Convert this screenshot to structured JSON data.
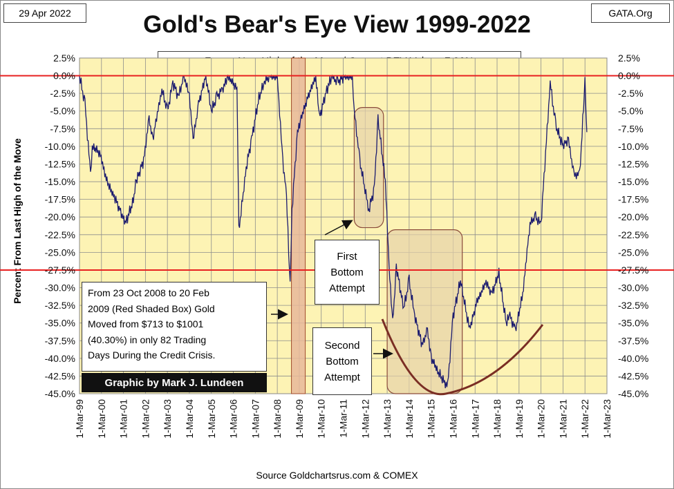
{
  "header": {
    "date": "29 Apr 2022",
    "site": "GATA.Org"
  },
  "chart_data": {
    "type": "line",
    "title": "Gold's Bear's Eye View 1999-2022",
    "subtitle": "Zero = New High of the Move / Current BEV Value:  -7.96%",
    "ylabel": "Percent  From Last High of the Move",
    "xlabel": "",
    "ylim": [
      -45,
      2.5
    ],
    "ytick_labels": [
      "2.5%",
      "0.0%",
      "-2.5%",
      "-5.0%",
      "-7.5%",
      "-10.0%",
      "-12.5%",
      "-15.0%",
      "-17.5%",
      "-20.0%",
      "-22.5%",
      "-25.0%",
      "-27.5%",
      "-30.0%",
      "-32.5%",
      "-35.0%",
      "-37.5%",
      "-40.0%",
      "-42.5%",
      "-45.0%"
    ],
    "xtick_labels": [
      "1-Mar-99",
      "1-Mar-00",
      "1-Mar-01",
      "1-Mar-02",
      "1-Mar-03",
      "1-Mar-04",
      "1-Mar-05",
      "1-Mar-06",
      "1-Mar-07",
      "1-Mar-08",
      "1-Mar-09",
      "1-Mar-10",
      "1-Mar-11",
      "1-Mar-12",
      "1-Mar-13",
      "1-Mar-14",
      "1-Mar-15",
      "1-Mar-16",
      "1-Mar-17",
      "1-Mar-18",
      "1-Mar-19",
      "1-Mar-20",
      "1-Mar-21",
      "1-Mar-22",
      "1-Mar-23"
    ],
    "grid": true,
    "reference_lines": [
      0.0,
      -27.5
    ],
    "series": [
      {
        "color": "#1a1a6e",
        "x": [
          "1999-03",
          "1999-06",
          "1999-09",
          "1999-10",
          "2000-02",
          "2000-06",
          "2000-10",
          "2001-04",
          "2001-08",
          "2001-10",
          "2002-02",
          "2002-05",
          "2002-07",
          "2002-12",
          "2003-03",
          "2003-06",
          "2003-09",
          "2003-12",
          "2004-03",
          "2004-05",
          "2004-08",
          "2004-12",
          "2005-03",
          "2005-06",
          "2005-09",
          "2005-12",
          "2006-05",
          "2006-06",
          "2006-10",
          "2007-01",
          "2007-05",
          "2007-08",
          "2007-11",
          "2008-03",
          "2008-06",
          "2008-08",
          "2008-10",
          "2008-11",
          "2009-02",
          "2009-04",
          "2009-08",
          "2009-12",
          "2010-02",
          "2010-06",
          "2010-09",
          "2010-12",
          "2011-04",
          "2011-08",
          "2011-09",
          "2011-12",
          "2012-05",
          "2012-08",
          "2012-10",
          "2013-02",
          "2013-04",
          "2013-06",
          "2013-08",
          "2013-12",
          "2014-03",
          "2014-06",
          "2014-10",
          "2015-01",
          "2015-03",
          "2015-07",
          "2015-12",
          "2016-03",
          "2016-07",
          "2016-12",
          "2017-04",
          "2017-09",
          "2017-12",
          "2018-04",
          "2018-08",
          "2018-10",
          "2019-01",
          "2019-05",
          "2019-09",
          "2019-12",
          "2020-03",
          "2020-08",
          "2020-11",
          "2021-03",
          "2021-06",
          "2021-09",
          "2021-12",
          "2022-01",
          "2022-03",
          "2022-04"
        ],
        "values": [
          0,
          -4,
          -14,
          -10,
          -11,
          -15,
          -17,
          -21,
          -18,
          -15,
          -12,
          -6,
          -9,
          -2,
          -5,
          -1,
          -3,
          0,
          -3,
          -9,
          -4,
          0,
          -5,
          -3,
          -2,
          0,
          -2,
          -22,
          -13,
          -9,
          -3,
          -1,
          0,
          0,
          -12,
          -17,
          -30,
          -19,
          -8,
          -6,
          -3,
          0,
          -6,
          -2,
          0,
          -1,
          0,
          0,
          -5,
          -12,
          -19,
          -16,
          -6,
          -15,
          -27,
          -35,
          -27,
          -33,
          -29,
          -34,
          -38,
          -36,
          -40,
          -42,
          -44,
          -34,
          -29,
          -36,
          -32,
          -29,
          -31,
          -28,
          -35,
          -34,
          -36,
          -31,
          -21,
          -20,
          -21,
          -1,
          -7,
          -10,
          -9,
          -14,
          -14,
          -10,
          -1,
          -8
        ]
      }
    ],
    "shaded_period": {
      "from": "2008-10-23",
      "to": "2009-02-20"
    }
  },
  "annotations": {
    "note_lines": [
      "From 23 Oct 2008  to 20 Feb",
      "2009  (Red Shaded Box)  Gold",
      "Moved from $713  to $1001",
      "(40.30%)  in only 82 Trading",
      "Days During the Credit Crisis."
    ],
    "credit": "Graphic by Mark J. Lundeen",
    "first_lines": [
      "First",
      "Bottom",
      "Attempt"
    ],
    "second_lines": [
      "Second",
      "Bottom",
      "Attempt"
    ]
  },
  "footer": {
    "source": "Source Goldchartsrus.com  & COMEX"
  }
}
